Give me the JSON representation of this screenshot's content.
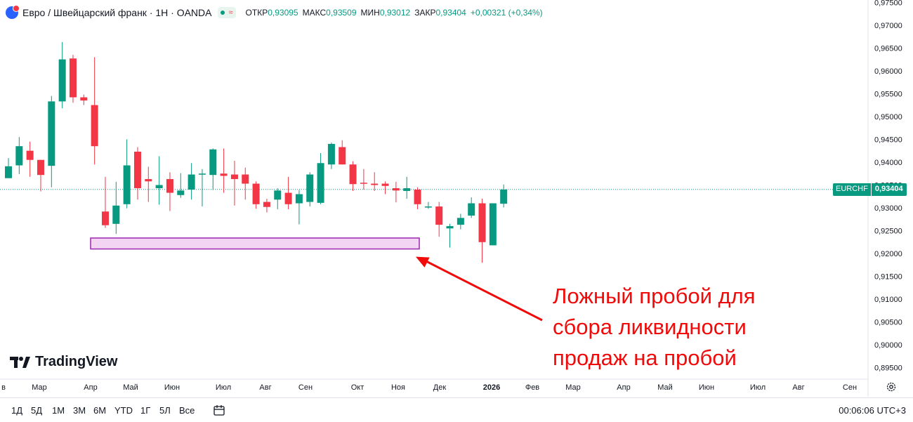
{
  "header": {
    "title": "Евро / Швейцарский франк · 1H · OANDA",
    "status_wave": "≈",
    "ohlc": [
      {
        "label": "ОТКР",
        "value": "0,93095"
      },
      {
        "label": "МАКС",
        "value": "0,93509"
      },
      {
        "label": "МИН",
        "value": "0,93012"
      },
      {
        "label": "ЗАКР",
        "value": "0,93404"
      }
    ],
    "change": "+0,00321 (+0,34%)"
  },
  "price_label": {
    "symbol": "EURCHF",
    "value": "0,93404"
  },
  "annotation": {
    "lines": [
      "Ложный пробой для",
      "сбора ликвидности",
      "продаж на пробой"
    ]
  },
  "logo_text": "TradingView",
  "timeframes": [
    "1Д",
    "5Д",
    "1М",
    "3М",
    "6М",
    "YTD",
    "1Г",
    "5Л",
    "Все"
  ],
  "clock": "00:06:06 UTC+3",
  "colors": {
    "up": "#089981",
    "down": "#f23645",
    "zone_fill": "#f3d4f3",
    "zone_border": "#9c27b0",
    "arrow": "#f00a0a"
  },
  "chart_data": {
    "type": "candlestick",
    "symbol": "EURCHF",
    "ylim": [
      0.8925,
      0.9755
    ],
    "y_ticks": [
      "0,97500",
      "0,97000",
      "0,96500",
      "0,96000",
      "0,95500",
      "0,95000",
      "0,94500",
      "0,94000",
      "0,93500",
      "0,93000",
      "0,92500",
      "0,92000",
      "0,91500",
      "0,91000",
      "0,90500",
      "0,90000",
      "0,89500"
    ],
    "x_ticks": [
      "в",
      "Мар",
      "Апр",
      "Май",
      "Июн",
      "Июл",
      "Авг",
      "Сен",
      "Окт",
      "Ноя",
      "Дек",
      "2026",
      "Фев",
      "Мар",
      "Апр",
      "Май",
      "Июн",
      "Июл",
      "Авг",
      "Сен"
    ],
    "last_price": 0.93404,
    "candles": [
      [
        0.9365,
        0.9391,
        0.9409,
        0.9385
      ],
      [
        0.9393,
        0.9435,
        0.9455,
        0.9374
      ],
      [
        0.9425,
        0.9405,
        0.9445,
        0.9368
      ],
      [
        0.9405,
        0.9372,
        0.9405,
        0.9336
      ],
      [
        0.9392,
        0.9533,
        0.9545,
        0.9345
      ],
      [
        0.9533,
        0.9625,
        0.9663,
        0.9518
      ],
      [
        0.9627,
        0.9542,
        0.9635,
        0.953
      ],
      [
        0.9542,
        0.9535,
        0.9548,
        0.9525
      ],
      [
        0.9525,
        0.9435,
        0.963,
        0.9395
      ],
      [
        0.9292,
        0.9262,
        0.9368,
        0.9256
      ],
      [
        0.9265,
        0.9305,
        0.9357,
        0.9243
      ],
      [
        0.9308,
        0.9393,
        0.945,
        0.9299
      ],
      [
        0.9423,
        0.9343,
        0.9433,
        0.9318
      ],
      [
        0.9363,
        0.9358,
        0.939,
        0.9313
      ],
      [
        0.9343,
        0.935,
        0.9413,
        0.9307
      ],
      [
        0.9363,
        0.9333,
        0.9378,
        0.9293
      ],
      [
        0.9328,
        0.9338,
        0.9376,
        0.9322
      ],
      [
        0.934,
        0.9373,
        0.9398,
        0.9318
      ],
      [
        0.9375,
        0.9375,
        0.9385,
        0.9303
      ],
      [
        0.9372,
        0.9428,
        0.943,
        0.9339
      ],
      [
        0.9375,
        0.937,
        0.943,
        0.9333
      ],
      [
        0.9373,
        0.9363,
        0.9403,
        0.9305
      ],
      [
        0.9373,
        0.9353,
        0.9388,
        0.9318
      ],
      [
        0.9353,
        0.9308,
        0.9358,
        0.9298
      ],
      [
        0.9313,
        0.9302,
        0.932,
        0.929
      ],
      [
        0.9318,
        0.9338,
        0.9343,
        0.9297
      ],
      [
        0.9333,
        0.9308,
        0.9368,
        0.9297
      ],
      [
        0.931,
        0.933,
        0.9339,
        0.9264
      ],
      [
        0.9313,
        0.9373,
        0.9378,
        0.9303
      ],
      [
        0.9311,
        0.9398,
        0.942,
        0.9308
      ],
      [
        0.9395,
        0.944,
        0.9443,
        0.9385
      ],
      [
        0.9433,
        0.9395,
        0.9448,
        0.9395
      ],
      [
        0.9395,
        0.9352,
        0.9402,
        0.9337
      ],
      [
        0.9355,
        0.9353,
        0.9385,
        0.934
      ],
      [
        0.9353,
        0.935,
        0.9378,
        0.9337
      ],
      [
        0.9353,
        0.9348,
        0.9358,
        0.933
      ],
      [
        0.9343,
        0.9338,
        0.9357,
        0.9312
      ],
      [
        0.9337,
        0.9343,
        0.9368,
        0.932
      ],
      [
        0.934,
        0.9308,
        0.9345,
        0.9297
      ],
      [
        0.9303,
        0.9303,
        0.9313,
        0.9298
      ],
      [
        0.9303,
        0.9263,
        0.9313,
        0.9237
      ],
      [
        0.9255,
        0.926,
        0.9265,
        0.9213
      ],
      [
        0.9263,
        0.9278,
        0.9287,
        0.9253
      ],
      [
        0.9283,
        0.931,
        0.9323,
        0.9278
      ],
      [
        0.931,
        0.9225,
        0.932,
        0.918
      ],
      [
        0.9218,
        0.931,
        0.931,
        0.9218
      ],
      [
        0.9309,
        0.934,
        0.9351,
        0.9301
      ]
    ],
    "zone": {
      "price_high": 0.9234,
      "price_low": 0.921
    },
    "arrow_target_price": 0.9193
  }
}
